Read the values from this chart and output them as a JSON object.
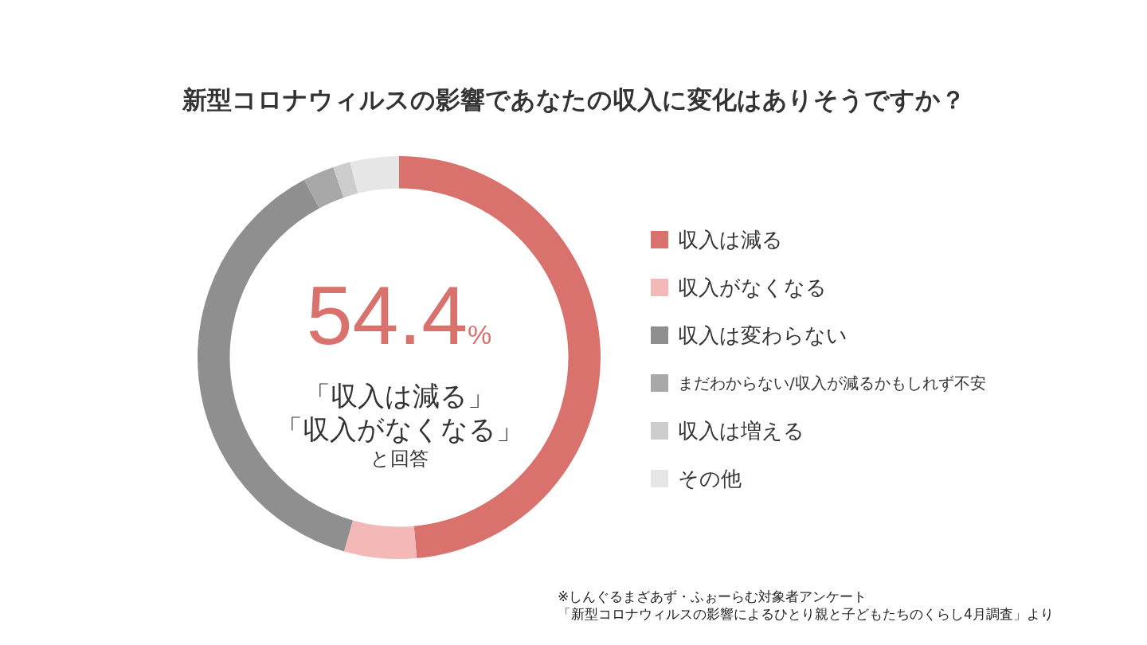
{
  "chart_data": {
    "type": "donut",
    "title": "新型コロナウィルスの影響であなたの収入に変化はありそうですか？",
    "categories": [
      "収入は減る",
      "収入がなくなる",
      "収入は変わらない",
      "まだわからない/収入が減るかもしれず不安",
      "収入は増える",
      "その他"
    ],
    "values": [
      48.6,
      5.8,
      37.8,
      2.5,
      1.4,
      3.9
    ],
    "colors": [
      "#d9716c",
      "#f4b8b6",
      "#8f8f8f",
      "#a8a8a8",
      "#cdcdcd",
      "#e6e6e6"
    ],
    "legend": "right",
    "annotations": [
      "54.4%",
      "「収入は減る」",
      "「収入がなくなる」",
      "と回答",
      "※しんぐるまざあず・ふぉーらむ対象者アンケート",
      "「新型コロナウィルスの影響によるひとり親と子どもたちのくらし4月調査」より"
    ]
  }
}
